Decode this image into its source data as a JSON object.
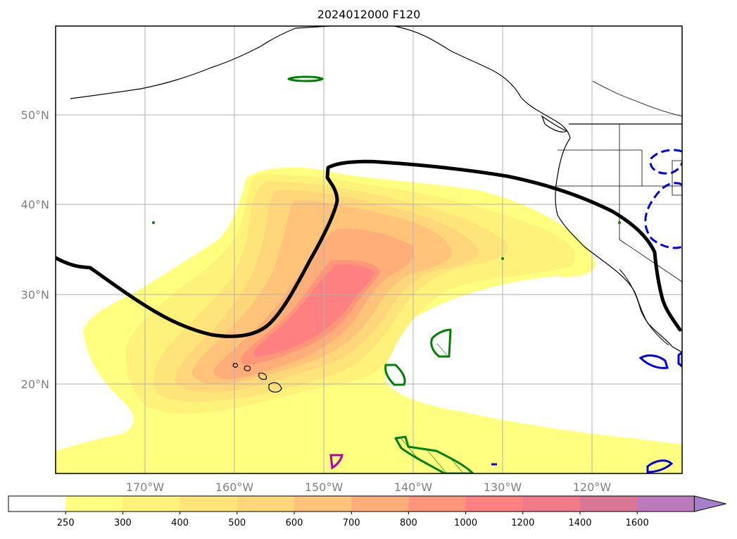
{
  "title": "2024012000 F120",
  "map": {
    "lat_labels": [
      "50°N",
      "40°N",
      "30°N",
      "20°N"
    ],
    "lon_labels": [
      "170°W",
      "160°W",
      "150°W",
      "140°W",
      "130°W",
      "120°W"
    ],
    "lat_range": [
      10,
      60
    ],
    "lon_range": [
      -180,
      -110
    ],
    "grid": true
  },
  "colorbar": {
    "extend": "max",
    "levels": [
      "250",
      "300",
      "400",
      "500",
      "600",
      "700",
      "800",
      "1000",
      "1200",
      "1400",
      "1600"
    ],
    "colors": [
      "#ffff80",
      "#fff27a",
      "#ffe479",
      "#ffd67a",
      "#ffc479",
      "#ffae79",
      "#ff9679",
      "#ff8080",
      "#f07a88",
      "#d87896",
      "#bb7abb",
      "#a87fcc"
    ]
  },
  "overlay_colors": {
    "black_line": "#000000",
    "green_contours": "#008000",
    "blue_contours": "#0000e6",
    "magenta_contour": "#b000b0",
    "coast": "#000000"
  }
}
